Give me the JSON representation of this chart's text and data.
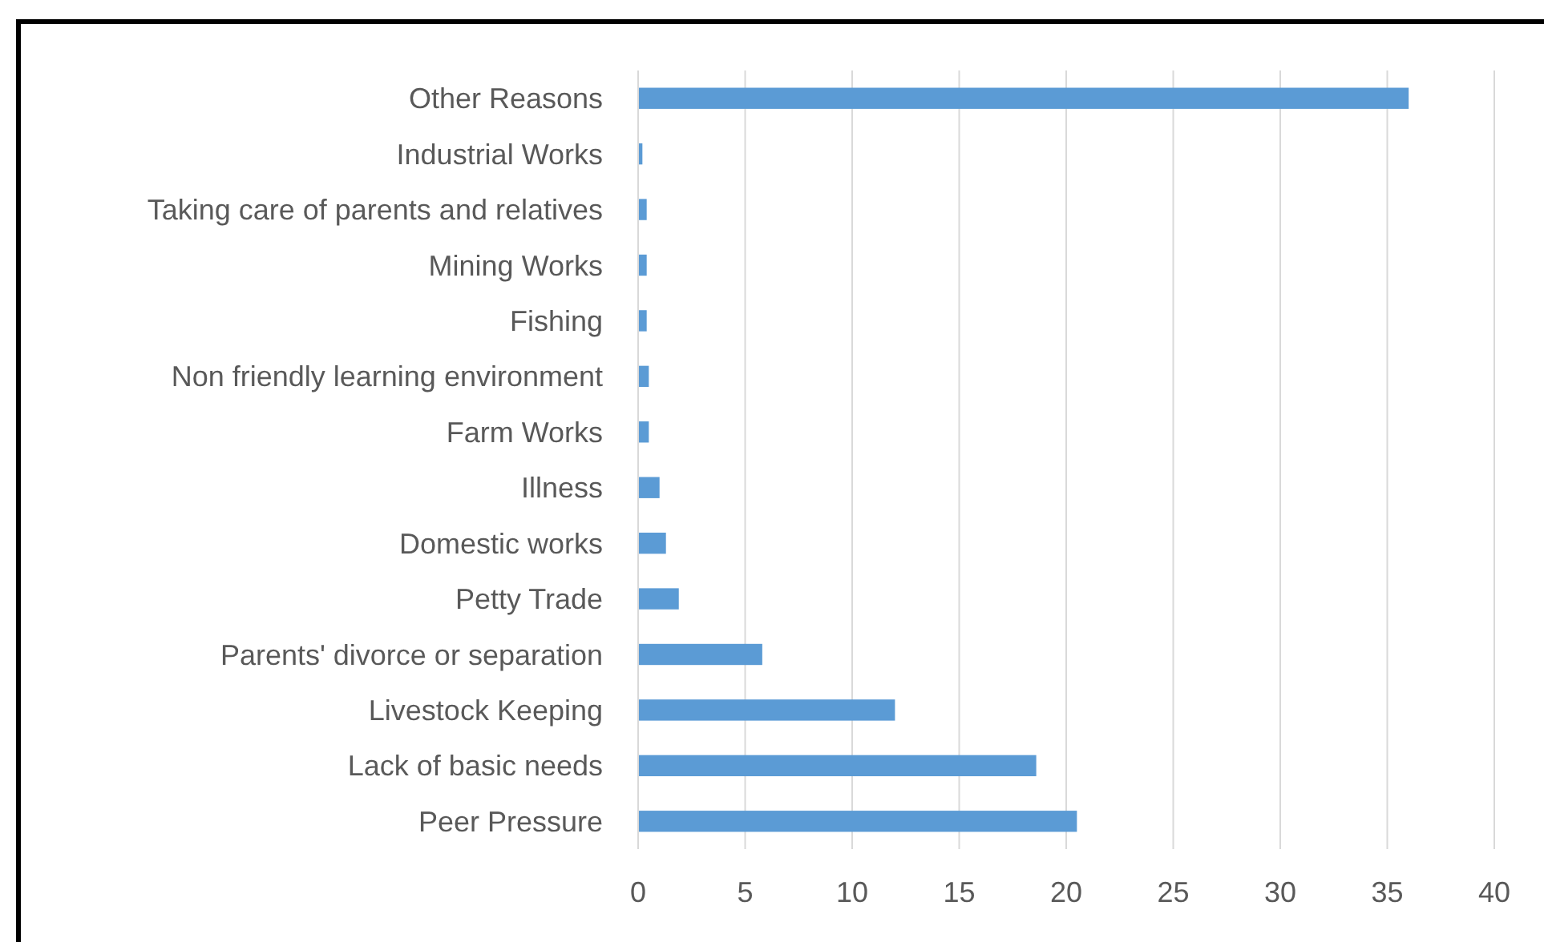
{
  "chart_data": {
    "type": "bar",
    "orientation": "horizontal",
    "categories": [
      "Other Reasons",
      "Industrial Works",
      "Taking care of parents and relatives",
      "Mining Works",
      "Fishing",
      "Non friendly learning environment",
      "Farm Works",
      "Illness",
      "Domestic works",
      "Petty Trade",
      "Parents' divorce or separation",
      "Livestock Keeping",
      "Lack of basic needs",
      "Peer Pressure"
    ],
    "values": [
      36,
      0.2,
      0.4,
      0.4,
      0.4,
      0.5,
      0.5,
      1.0,
      1.3,
      1.9,
      5.8,
      12.0,
      18.6,
      20.5
    ],
    "color": "#5b9bd5",
    "xlim": [
      0,
      40
    ],
    "xticks": [
      0,
      5,
      10,
      15,
      20,
      25,
      30,
      35,
      40
    ],
    "grid": "x"
  }
}
